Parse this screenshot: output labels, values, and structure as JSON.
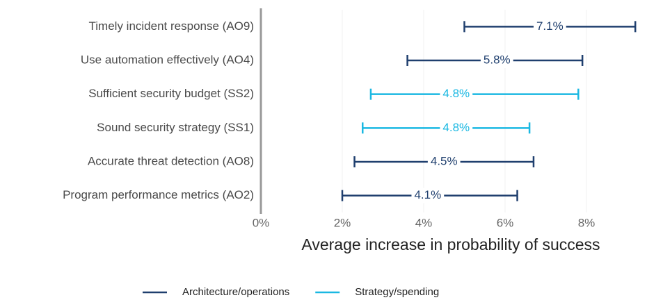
{
  "chart_data": {
    "type": "interval",
    "xlabel": "Average increase in probability of success",
    "categories": [
      "Timely incident response (AO9)",
      "Use automation effectively (AO4)",
      "Sufficient security budget (SS2)",
      "Sound security strategy (SS1)",
      "Accurate threat detection (AO8)",
      "Program performance metrics (AO2)"
    ],
    "series": [
      {
        "name": "Architecture/operations",
        "color": "#1f3f6e",
        "values": [
          7.1,
          5.8,
          null,
          null,
          4.5,
          4.1
        ],
        "value_labels": [
          "7.1%",
          "5.8%",
          null,
          null,
          "4.5%",
          "4.1%"
        ],
        "low": [
          5.0,
          3.6,
          null,
          null,
          2.3,
          2.0
        ],
        "high": [
          9.2,
          7.9,
          null,
          null,
          6.7,
          6.3
        ]
      },
      {
        "name": "Strategy/spending",
        "color": "#1ab8e2",
        "values": [
          null,
          null,
          4.8,
          4.8,
          null,
          null
        ],
        "value_labels": [
          null,
          null,
          "4.8%",
          "4.8%",
          null,
          null
        ],
        "low": [
          null,
          null,
          2.7,
          2.5,
          null,
          null
        ],
        "high": [
          null,
          null,
          7.8,
          6.6,
          null,
          null
        ]
      }
    ],
    "xlim": [
      0,
      9.3
    ],
    "xticks": [
      {
        "value": 0,
        "label": "0%"
      },
      {
        "value": 2,
        "label": "2%"
      },
      {
        "value": 4,
        "label": "4%"
      },
      {
        "value": 6,
        "label": "6%"
      },
      {
        "value": 8,
        "label": "8%"
      }
    ],
    "grid": true,
    "legend": "bottom"
  }
}
